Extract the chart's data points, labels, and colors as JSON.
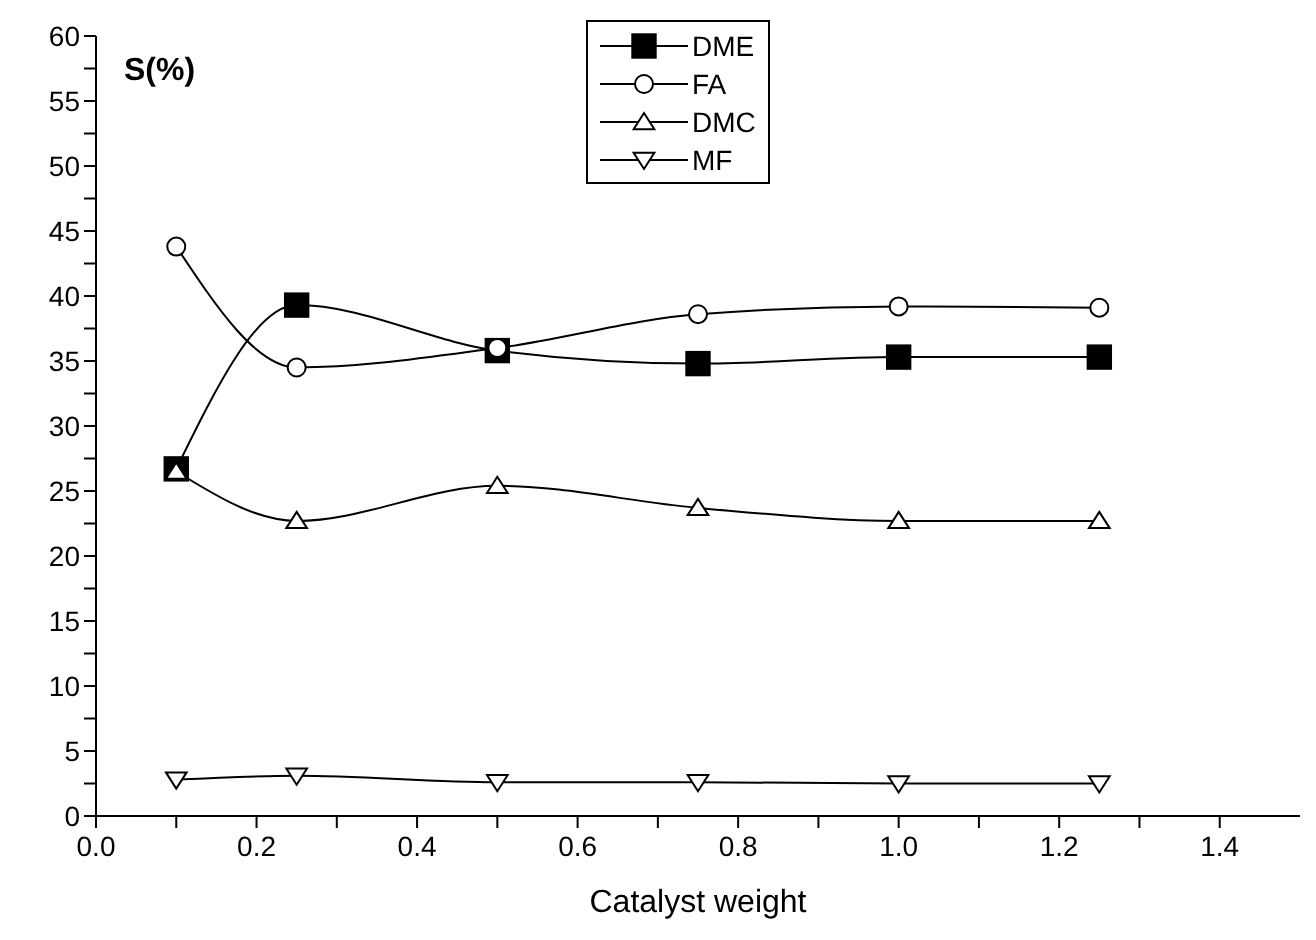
{
  "chart_data": {
    "type": "line",
    "xlabel": "Catalyst weight",
    "ylabel": "S(%)",
    "x": [
      0.1,
      0.25,
      0.5,
      0.75,
      1.0,
      1.25
    ],
    "series": [
      {
        "name": "DME",
        "color": "#000000",
        "marker": "square",
        "values": [
          26.7,
          39.3,
          35.8,
          34.8,
          35.3,
          35.3
        ]
      },
      {
        "name": "FA",
        "color": "#000000",
        "marker": "circle",
        "values": [
          43.8,
          34.5,
          36.0,
          38.6,
          39.2,
          39.1
        ]
      },
      {
        "name": "DMC",
        "color": "#000000",
        "marker": "triangle",
        "values": [
          26.5,
          22.7,
          25.4,
          23.7,
          22.7,
          22.7
        ]
      },
      {
        "name": "MF",
        "color": "#000000",
        "marker": "triangle-down",
        "values": [
          2.8,
          3.1,
          2.6,
          2.6,
          2.5,
          2.5
        ]
      }
    ],
    "xlim": [
      0,
      1.5
    ],
    "xticks": [
      {
        "value": 0,
        "label": "0.0"
      },
      {
        "value": 0.1,
        "label": null
      },
      {
        "value": 0.2,
        "label": "0.2"
      },
      {
        "value": 0.3,
        "label": null
      },
      {
        "value": 0.4,
        "label": "0.4"
      },
      {
        "value": 0.5,
        "label": null
      },
      {
        "value": 0.6,
        "label": "0.6"
      },
      {
        "value": 0.7,
        "label": null
      },
      {
        "value": 0.8,
        "label": "0.8"
      },
      {
        "value": 0.9,
        "label": null
      },
      {
        "value": 1.0,
        "label": "1.0"
      },
      {
        "value": 1.1,
        "label": null
      },
      {
        "value": 1.2,
        "label": "1.2"
      },
      {
        "value": 1.3,
        "label": null
      },
      {
        "value": 1.4,
        "label": "1.4"
      }
    ],
    "ylim": [
      0,
      60
    ],
    "yticks": [
      0,
      {
        "value": 2.5,
        "label": null
      },
      5,
      {
        "value": 7.5,
        "label": null
      },
      10,
      {
        "value": 12.5,
        "label": null
      },
      15,
      {
        "value": 17.5,
        "label": null
      },
      20,
      {
        "value": 22.5,
        "label": null
      },
      25,
      {
        "value": 27.5,
        "label": null
      },
      30,
      {
        "value": 32.5,
        "label": null
      },
      35,
      {
        "value": 37.5,
        "label": null
      },
      40,
      {
        "value": 42.5,
        "label": null
      },
      45,
      {
        "value": 47.5,
        "label": null
      },
      50,
      {
        "value": 52.5,
        "label": null
      },
      55,
      {
        "value": 57.5,
        "label": null
      },
      60
    ],
    "grid": false,
    "legend": "top",
    "line_style": "solid"
  }
}
